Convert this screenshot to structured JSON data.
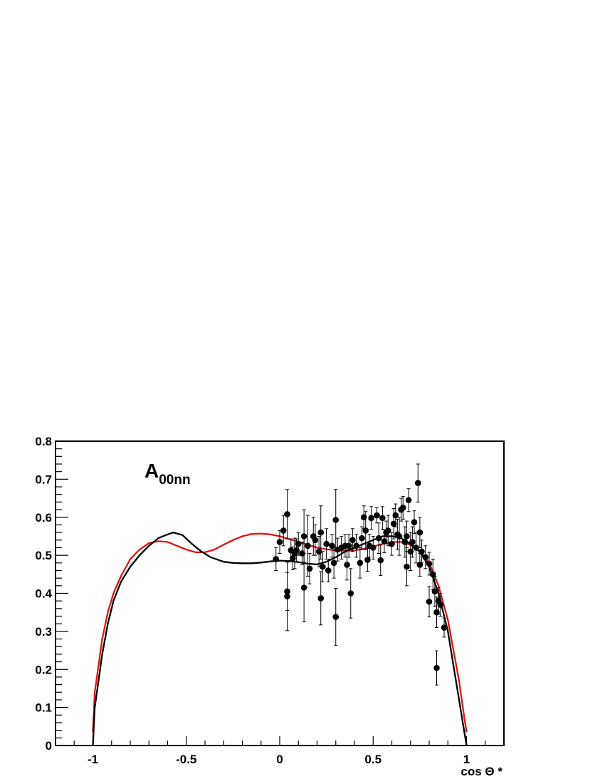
{
  "chart_data": {
    "type": "scatter",
    "title": "",
    "annotation": {
      "main": "A",
      "subscript": "00nn"
    },
    "xlabel": "cos Θ *",
    "ylabel": "",
    "xlim": [
      -1.2,
      1.2
    ],
    "ylim": [
      0,
      0.8
    ],
    "x_ticks": [
      -1,
      -0.5,
      0,
      0.5,
      1
    ],
    "x_tick_labels": [
      "-1",
      "-0.5",
      "0",
      "0.5",
      "1"
    ],
    "y_ticks": [
      0,
      0.1,
      0.2,
      0.3,
      0.4,
      0.5,
      0.6,
      0.7,
      0.8
    ],
    "y_tick_labels": [
      "0",
      "0.1",
      "0.2",
      "0.3",
      "0.4",
      "0.5",
      "0.6",
      "0.7",
      "0.8"
    ],
    "grid": false,
    "series": [
      {
        "kind": "points_with_errors",
        "color": "#000000",
        "points": [
          [
            -0.02,
            0.49,
            0.03
          ],
          [
            0.0,
            0.535,
            0.03
          ],
          [
            0.02,
            0.565,
            0.04
          ],
          [
            0.04,
            0.608,
            0.065
          ],
          [
            0.04,
            0.405,
            0.05
          ],
          [
            0.04,
            0.392,
            0.09
          ],
          [
            0.06,
            0.513,
            0.03
          ],
          [
            0.07,
            0.492,
            0.03
          ],
          [
            0.08,
            0.505,
            0.04
          ],
          [
            0.09,
            0.513,
            0.03
          ],
          [
            0.1,
            0.53,
            0.03
          ],
          [
            0.12,
            0.505,
            0.03
          ],
          [
            0.13,
            0.55,
            0.07
          ],
          [
            0.13,
            0.415,
            0.09
          ],
          [
            0.15,
            0.525,
            0.08
          ],
          [
            0.16,
            0.465,
            0.04
          ],
          [
            0.18,
            0.55,
            0.05
          ],
          [
            0.19,
            0.54,
            0.04
          ],
          [
            0.21,
            0.51,
            0.04
          ],
          [
            0.22,
            0.56,
            0.07
          ],
          [
            0.22,
            0.387,
            0.07
          ],
          [
            0.23,
            0.47,
            0.04
          ],
          [
            0.25,
            0.53,
            0.04
          ],
          [
            0.26,
            0.46,
            0.03
          ],
          [
            0.28,
            0.525,
            0.03
          ],
          [
            0.29,
            0.48,
            0.04
          ],
          [
            0.3,
            0.593,
            0.08
          ],
          [
            0.3,
            0.338,
            0.075
          ],
          [
            0.31,
            0.515,
            0.03
          ],
          [
            0.33,
            0.52,
            0.03
          ],
          [
            0.35,
            0.525,
            0.03
          ],
          [
            0.36,
            0.475,
            0.04
          ],
          [
            0.37,
            0.525,
            0.03
          ],
          [
            0.38,
            0.4,
            0.065
          ],
          [
            0.39,
            0.54,
            0.03
          ],
          [
            0.41,
            0.525,
            0.03
          ],
          [
            0.43,
            0.48,
            0.04
          ],
          [
            0.44,
            0.545,
            0.03
          ],
          [
            0.45,
            0.6,
            0.03
          ],
          [
            0.46,
            0.565,
            0.05
          ],
          [
            0.47,
            0.488,
            0.03
          ],
          [
            0.48,
            0.525,
            0.03
          ],
          [
            0.49,
            0.598,
            0.03
          ],
          [
            0.5,
            0.52,
            0.03
          ],
          [
            0.52,
            0.605,
            0.02
          ],
          [
            0.53,
            0.545,
            0.04
          ],
          [
            0.54,
            0.487,
            0.04
          ],
          [
            0.55,
            0.598,
            0.03
          ],
          [
            0.56,
            0.537,
            0.03
          ],
          [
            0.57,
            0.56,
            0.03
          ],
          [
            0.58,
            0.565,
            0.04
          ],
          [
            0.6,
            0.53,
            0.03
          ],
          [
            0.61,
            0.583,
            0.04
          ],
          [
            0.62,
            0.605,
            0.03
          ],
          [
            0.63,
            0.555,
            0.04
          ],
          [
            0.64,
            0.55,
            0.05
          ],
          [
            0.65,
            0.62,
            0.03
          ],
          [
            0.66,
            0.625,
            0.03
          ],
          [
            0.67,
            0.535,
            0.04
          ],
          [
            0.68,
            0.55,
            0.04
          ],
          [
            0.68,
            0.47,
            0.05
          ],
          [
            0.69,
            0.645,
            0.03
          ],
          [
            0.7,
            0.51,
            0.05
          ],
          [
            0.71,
            0.535,
            0.04
          ],
          [
            0.72,
            0.587,
            0.03
          ],
          [
            0.73,
            0.52,
            0.04
          ],
          [
            0.74,
            0.69,
            0.05
          ],
          [
            0.75,
            0.56,
            0.04
          ],
          [
            0.75,
            0.475,
            0.03
          ],
          [
            0.76,
            0.51,
            0.03
          ],
          [
            0.78,
            0.495,
            0.03
          ],
          [
            0.8,
            0.478,
            0.03
          ],
          [
            0.8,
            0.378,
            0.04
          ],
          [
            0.82,
            0.45,
            0.04
          ],
          [
            0.83,
            0.405,
            0.04
          ],
          [
            0.84,
            0.35,
            0.04
          ],
          [
            0.84,
            0.204,
            0.045
          ],
          [
            0.85,
            0.38,
            0.035
          ],
          [
            0.86,
            0.37,
            0.03
          ],
          [
            0.88,
            0.31,
            0.025
          ]
        ]
      },
      {
        "kind": "line",
        "color": "#e0140f",
        "x": [
          -1.0,
          -0.99,
          -0.97,
          -0.95,
          -0.92,
          -0.89,
          -0.85,
          -0.8,
          -0.75,
          -0.7,
          -0.65,
          -0.6,
          -0.55,
          -0.5,
          -0.45,
          -0.4,
          -0.35,
          -0.3,
          -0.25,
          -0.2,
          -0.15,
          -0.1,
          -0.05,
          0.0,
          0.05,
          0.1,
          0.15,
          0.2,
          0.25,
          0.3,
          0.35,
          0.4,
          0.45,
          0.5,
          0.55,
          0.6,
          0.65,
          0.7,
          0.75,
          0.8,
          0.85,
          0.9,
          0.93,
          0.96,
          0.98,
          1.0
        ],
        "y": [
          0.035,
          0.14,
          0.21,
          0.28,
          0.35,
          0.4,
          0.445,
          0.49,
          0.515,
          0.532,
          0.537,
          0.535,
          0.525,
          0.515,
          0.508,
          0.508,
          0.515,
          0.528,
          0.54,
          0.55,
          0.556,
          0.557,
          0.555,
          0.55,
          0.543,
          0.535,
          0.528,
          0.52,
          0.516,
          0.513,
          0.512,
          0.513,
          0.517,
          0.523,
          0.53,
          0.535,
          0.535,
          0.527,
          0.51,
          0.48,
          0.42,
          0.33,
          0.25,
          0.17,
          0.1,
          0.035
        ]
      },
      {
        "kind": "line",
        "color": "#000000",
        "x": [
          -1.0,
          -0.99,
          -0.97,
          -0.95,
          -0.92,
          -0.89,
          -0.85,
          -0.8,
          -0.75,
          -0.7,
          -0.65,
          -0.6,
          -0.57,
          -0.52,
          -0.47,
          -0.42,
          -0.37,
          -0.3,
          -0.25,
          -0.2,
          -0.15,
          -0.1,
          -0.05,
          0.0,
          0.05,
          0.1,
          0.15,
          0.2,
          0.25,
          0.3,
          0.35,
          0.4,
          0.45,
          0.5,
          0.55,
          0.6,
          0.65,
          0.7,
          0.75,
          0.8,
          0.85,
          0.9,
          0.93,
          0.96,
          0.98,
          1.0
        ],
        "y": [
          0.0,
          0.1,
          0.17,
          0.24,
          0.32,
          0.38,
          0.43,
          0.47,
          0.5,
          0.525,
          0.545,
          0.555,
          0.56,
          0.553,
          0.53,
          0.51,
          0.495,
          0.483,
          0.48,
          0.479,
          0.479,
          0.481,
          0.484,
          0.486,
          0.485,
          0.482,
          0.478,
          0.476,
          0.483,
          0.495,
          0.51,
          0.52,
          0.53,
          0.54,
          0.55,
          0.55,
          0.545,
          0.53,
          0.51,
          0.47,
          0.4,
          0.3,
          0.21,
          0.12,
          0.06,
          0.0
        ]
      }
    ]
  }
}
